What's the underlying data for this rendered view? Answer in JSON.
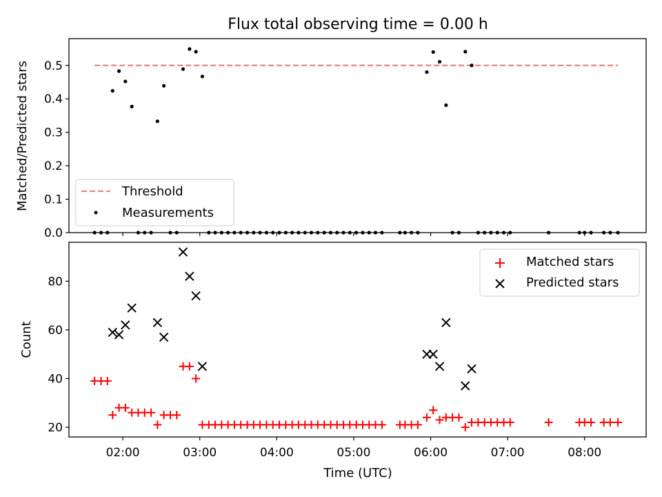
{
  "chart_data": [
    {
      "type": "scatter",
      "title": "Flux total observing time = 0.00 h",
      "xlabel": "",
      "ylabel": "Matched/Predicted stars",
      "ylim": [
        0,
        0.58
      ],
      "yticks": [
        "0.0",
        "0.1",
        "0.2",
        "0.3",
        "0.4",
        "0.5"
      ],
      "ytick_values": [
        0,
        0.1,
        0.2,
        0.3,
        0.4,
        0.5
      ],
      "legend_position": "bottom-left",
      "threshold": {
        "name": "Threshold",
        "value": 0.5,
        "x_range": [
          1.633,
          8.433
        ],
        "color": "#f08080"
      },
      "series": [
        {
          "name": "Measurements",
          "color": "#000000",
          "x": [
            1.633,
            1.717,
            1.8,
            1.867,
            1.95,
            2.033,
            2.117,
            2.2,
            2.283,
            2.367,
            2.45,
            2.533,
            2.617,
            2.7,
            2.783,
            2.867,
            2.95,
            3.033,
            3.117,
            3.2,
            3.283,
            3.367,
            3.45,
            3.533,
            3.617,
            3.7,
            3.783,
            3.867,
            3.95,
            4.033,
            4.117,
            4.2,
            4.283,
            4.367,
            4.45,
            4.533,
            4.617,
            4.7,
            4.783,
            4.867,
            4.95,
            5.033,
            5.117,
            5.2,
            5.283,
            5.367,
            5.6,
            5.667,
            5.75,
            5.833,
            5.95,
            6.033,
            6.117,
            6.2,
            6.283,
            6.367,
            6.45,
            6.533,
            6.617,
            6.7,
            6.783,
            6.867,
            6.95,
            7.033,
            7.533,
            7.933,
            8.0,
            8.083,
            8.25,
            8.333,
            8.433
          ],
          "y": [
            0,
            0,
            0,
            0.424,
            0.483,
            0.452,
            0.377,
            0,
            0,
            0,
            0.333,
            0.439,
            0,
            0,
            0.489,
            0.549,
            0.541,
            0.467,
            0,
            0,
            0,
            0,
            0,
            0,
            0,
            0,
            0,
            0,
            0,
            0,
            0,
            0,
            0,
            0,
            0,
            0,
            0,
            0,
            0,
            0,
            0,
            0,
            0,
            0,
            0,
            0,
            0,
            0,
            0,
            0,
            0.48,
            0.54,
            0.511,
            0.381,
            0,
            0,
            0.541,
            0.5,
            0,
            0,
            0,
            0,
            0,
            0,
            0,
            0,
            0,
            0,
            0,
            0,
            0
          ]
        }
      ]
    },
    {
      "type": "scatter",
      "title": "",
      "xlabel": "Time (UTC)",
      "ylabel": "Count",
      "xlim": [
        1.3,
        8.8
      ],
      "ylim": [
        16,
        96
      ],
      "xticks": [
        "02:00",
        "03:00",
        "04:00",
        "05:00",
        "06:00",
        "07:00",
        "08:00"
      ],
      "xtick_values": [
        2,
        3,
        4,
        5,
        6,
        7,
        8
      ],
      "yticks": [
        "20",
        "40",
        "60",
        "80"
      ],
      "ytick_values": [
        20,
        40,
        60,
        80
      ],
      "legend_position": "top-right",
      "series": [
        {
          "name": "Matched stars",
          "color": "#ff0000",
          "marker": "plus",
          "x": [
            1.633,
            1.717,
            1.8,
            1.867,
            1.95,
            2.033,
            2.117,
            2.2,
            2.283,
            2.367,
            2.45,
            2.533,
            2.617,
            2.7,
            2.783,
            2.867,
            2.95,
            3.033,
            3.117,
            3.2,
            3.283,
            3.367,
            3.45,
            3.533,
            3.617,
            3.7,
            3.783,
            3.867,
            3.95,
            4.033,
            4.117,
            4.2,
            4.283,
            4.367,
            4.45,
            4.533,
            4.617,
            4.7,
            4.783,
            4.867,
            4.95,
            5.033,
            5.117,
            5.2,
            5.283,
            5.367,
            5.6,
            5.667,
            5.75,
            5.833,
            5.95,
            6.033,
            6.117,
            6.2,
            6.283,
            6.367,
            6.45,
            6.533,
            6.617,
            6.7,
            6.783,
            6.867,
            6.95,
            7.033,
            7.533,
            7.933,
            8.0,
            8.083,
            8.25,
            8.333,
            8.433
          ],
          "y": [
            39,
            39,
            39,
            25,
            28,
            28,
            26,
            26,
            26,
            26,
            21,
            25,
            25,
            25,
            45,
            45,
            40,
            21,
            21,
            21,
            21,
            21,
            21,
            21,
            21,
            21,
            21,
            21,
            21,
            21,
            21,
            21,
            21,
            21,
            21,
            21,
            21,
            21,
            21,
            21,
            21,
            21,
            21,
            21,
            21,
            21,
            21,
            21,
            21,
            21,
            24,
            27,
            23,
            24,
            24,
            24,
            20,
            22,
            22,
            22,
            22,
            22,
            22,
            22,
            22,
            22,
            22,
            22,
            22,
            22,
            22
          ]
        },
        {
          "name": "Predicted stars",
          "color": "#000000",
          "marker": "x",
          "x": [
            1.867,
            1.95,
            2.033,
            2.117,
            2.45,
            2.533,
            2.783,
            2.867,
            2.95,
            3.033,
            5.95,
            6.033,
            6.117,
            6.2,
            6.45,
            6.533
          ],
          "y": [
            59,
            58,
            62,
            69,
            63,
            57,
            92,
            82,
            74,
            45,
            50,
            50,
            45,
            63,
            37,
            44
          ]
        }
      ]
    }
  ]
}
